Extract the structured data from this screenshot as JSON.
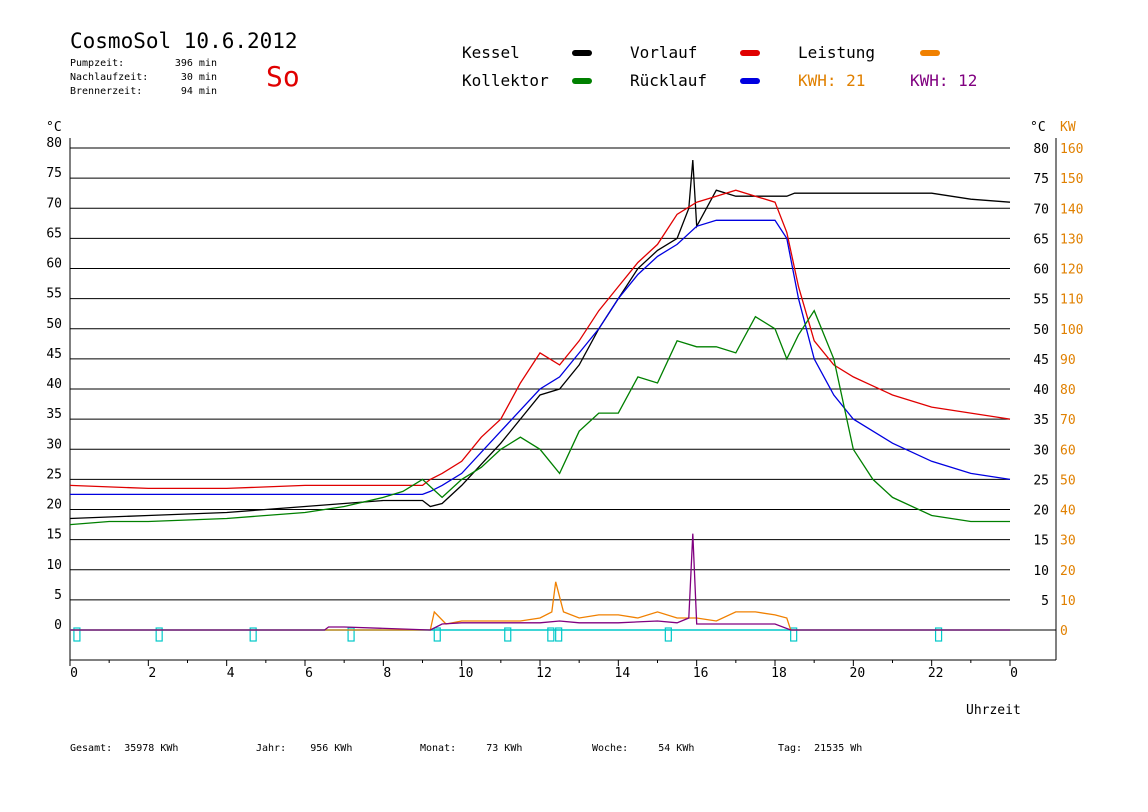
{
  "header": {
    "title": "CosmoSol 10.6.2012",
    "day": "So",
    "info": [
      {
        "label": "Pumpzeit:",
        "value": "396 min"
      },
      {
        "label": "Nachlaufzeit:",
        "value": "30 min"
      },
      {
        "label": "Brennerzeit:",
        "value": "94 min"
      }
    ]
  },
  "legend": {
    "kessel": {
      "label": "Kessel",
      "color": "#000000"
    },
    "vorlauf": {
      "label": "Vorlauf",
      "color": "#e00000"
    },
    "leistung": {
      "label": "Leistung",
      "color": "#f08000"
    },
    "kollektor": {
      "label": "Kollektor",
      "color": "#008000"
    },
    "ruecklauf": {
      "label": "Rücklauf",
      "color": "#0000e0"
    },
    "kwh1": {
      "label": "KWH: 21",
      "color": "#e08000"
    },
    "kwh2": {
      "label": "KWH: 12",
      "color": "#800080"
    }
  },
  "footer": [
    {
      "label": "Gesamt:",
      "value": "35978 KWh"
    },
    {
      "label": "Jahr:",
      "value": "956 KWh"
    },
    {
      "label": "Monat:",
      "value": "73 KWh"
    },
    {
      "label": "Woche:",
      "value": "54 KWh"
    },
    {
      "label": "Tag:",
      "value": "21535 Wh"
    }
  ],
  "chart_data": {
    "type": "line",
    "xlabel": "Uhrzeit",
    "ylabel_left": "°C",
    "ylabel_right_temp": "°C",
    "ylabel_right_power": "KW",
    "x_ticks": [
      "0",
      "2",
      "4",
      "6",
      "8",
      "10",
      "12",
      "14",
      "16",
      "18",
      "20",
      "22",
      "0"
    ],
    "xlim": [
      0,
      24
    ],
    "ylim": [
      0,
      80
    ],
    "y_ticks_left": [
      "0",
      "5",
      "10",
      "15",
      "20",
      "25",
      "30",
      "35",
      "40",
      "45",
      "50",
      "55",
      "60",
      "65",
      "70",
      "75",
      "80"
    ],
    "y_ticks_right_temp": [
      "5",
      "10",
      "15",
      "20",
      "25",
      "30",
      "35",
      "40",
      "45",
      "50",
      "55",
      "60",
      "65",
      "70",
      "75",
      "80"
    ],
    "y_ticks_right_power": [
      "0",
      "10",
      "20",
      "30",
      "40",
      "50",
      "60",
      "70",
      "80",
      "90",
      "100",
      "110",
      "120",
      "130",
      "140",
      "150",
      "160"
    ],
    "series": [
      {
        "name": "Kessel",
        "color": "#000000",
        "x": [
          0,
          2,
          4,
          6,
          7,
          8,
          9,
          9.2,
          9.5,
          10,
          11,
          12,
          12.5,
          13,
          13.5,
          14,
          14.5,
          15,
          15.5,
          15.8,
          15.9,
          16,
          16.5,
          17,
          17.5,
          18,
          18.3,
          18.5,
          19,
          20,
          21,
          22,
          23,
          24
        ],
        "y": [
          18.5,
          19,
          19.5,
          20.5,
          21,
          21.5,
          21.5,
          20.5,
          21,
          24,
          31,
          39,
          40,
          44,
          50,
          55,
          60,
          63,
          65,
          70,
          78,
          67,
          73,
          72,
          72,
          72,
          72,
          72.5,
          72.5,
          72.5,
          72.5,
          72.5,
          71.5,
          71
        ]
      },
      {
        "name": "Vorlauf",
        "color": "#e00000",
        "x": [
          0,
          2,
          4,
          6,
          8,
          9,
          9.2,
          9.5,
          10,
          10.5,
          11,
          11.5,
          12,
          12.5,
          13,
          13.5,
          14,
          14.5,
          15,
          15.5,
          16,
          16.5,
          17,
          17.5,
          18,
          18.3,
          18.6,
          19,
          19.5,
          20,
          21,
          22,
          23,
          24
        ],
        "y": [
          24,
          23.5,
          23.5,
          24,
          24,
          24,
          25,
          26,
          28,
          32,
          35,
          41,
          46,
          44,
          48,
          53,
          57,
          61,
          64,
          69,
          71,
          72,
          73,
          72,
          71,
          66,
          57,
          48,
          44,
          42,
          39,
          37,
          36,
          35
        ]
      },
      {
        "name": "Rücklauf",
        "color": "#0000e0",
        "x": [
          0,
          2,
          4,
          6,
          8,
          9,
          9.2,
          9.5,
          10,
          11,
          12,
          12.5,
          13,
          13.5,
          14,
          14.5,
          15,
          15.5,
          16,
          16.5,
          17,
          17.5,
          18,
          18.3,
          18.6,
          19,
          19.5,
          20,
          21,
          22,
          23,
          24
        ],
        "y": [
          22.5,
          22.5,
          22.5,
          22.5,
          22.5,
          22.5,
          23,
          24,
          26,
          33,
          40,
          42,
          46,
          50,
          55,
          59,
          62,
          64,
          67,
          68,
          68,
          68,
          68,
          65,
          55,
          45,
          39,
          35,
          31,
          28,
          26,
          25
        ]
      },
      {
        "name": "Kollektor",
        "color": "#008000",
        "x": [
          0,
          1,
          2,
          4,
          6,
          7,
          8,
          8.5,
          9,
          9.5,
          10,
          10.5,
          11,
          11.5,
          12,
          12.5,
          13,
          13.5,
          14,
          14.5,
          15,
          15.5,
          16,
          16.5,
          17,
          17.5,
          18,
          18.3,
          18.6,
          19,
          19.5,
          20,
          20.5,
          21,
          22,
          23,
          24
        ],
        "y": [
          17.5,
          18,
          18,
          18.5,
          19.5,
          20.5,
          22,
          23,
          25,
          22,
          25,
          27,
          30,
          32,
          30,
          26,
          33,
          36,
          36,
          42,
          41,
          48,
          47,
          47,
          46,
          52,
          50,
          45,
          49,
          53,
          45,
          30,
          25,
          22,
          19,
          18,
          18
        ]
      },
      {
        "name": "Leistung",
        "color": "#f08000",
        "x": [
          0,
          9.2,
          9.3,
          9.6,
          10,
          10.5,
          11,
          11.5,
          12,
          12.3,
          12.4,
          12.6,
          13,
          13.5,
          14,
          14.5,
          15,
          15.5,
          16,
          16.5,
          17,
          17.5,
          18,
          18.3,
          18.4,
          24
        ],
        "y": [
          0,
          0,
          3,
          1,
          1.5,
          1.5,
          1.5,
          1.5,
          2,
          3,
          8,
          3,
          2,
          2.5,
          2.5,
          2,
          3,
          2,
          2,
          1.5,
          3,
          3,
          2.5,
          2,
          0,
          0
        ]
      },
      {
        "name": "Purple",
        "color": "#800080",
        "x": [
          0,
          6.5,
          6.6,
          7,
          9.2,
          9.5,
          10,
          11,
          12,
          12.5,
          13,
          14,
          15,
          15.5,
          15.8,
          15.9,
          16,
          16.5,
          17,
          18,
          18.4,
          24
        ],
        "y": [
          0,
          0,
          0.5,
          0.5,
          0,
          1,
          1.2,
          1.2,
          1.2,
          1.5,
          1.2,
          1.2,
          1.5,
          1.2,
          2,
          16,
          1,
          1,
          1,
          1,
          0,
          0
        ]
      }
    ],
    "pump_markers_x": [
      0.1,
      2.2,
      4.6,
      7.1,
      9.3,
      11.1,
      12.2,
      12.4,
      15.2,
      18.4,
      22.1
    ]
  }
}
